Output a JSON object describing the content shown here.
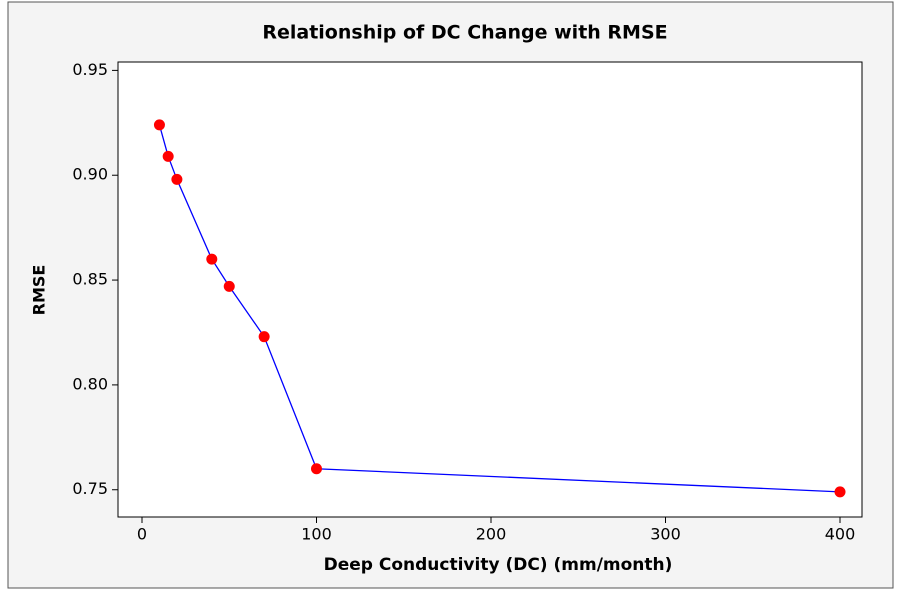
{
  "chart_data": {
    "type": "line",
    "title": "Relationship of DC Change with RMSE",
    "xlabel": "Deep Conductivity (DC) (mm/month)",
    "ylabel": "RMSE",
    "x": [
      10,
      15,
      20,
      40,
      50,
      70,
      100,
      400
    ],
    "series": [
      {
        "name": "RMSE",
        "color": "#0000ff",
        "marker_color": "#ff0000",
        "values": [
          0.924,
          0.909,
          0.898,
          0.86,
          0.847,
          0.823,
          0.76,
          0.749
        ]
      }
    ],
    "xlim": [
      -13.75,
      412.6
    ],
    "ylim": [
      0.737,
      0.954
    ],
    "xticks": [
      0,
      100,
      200,
      300,
      400
    ],
    "yticks": [
      0.95,
      {
        "value": 0.9,
        "label": "0.90"
      },
      0.85,
      {
        "value": 0.8,
        "label": "0.80"
      },
      0.75
    ],
    "grid": false
  }
}
